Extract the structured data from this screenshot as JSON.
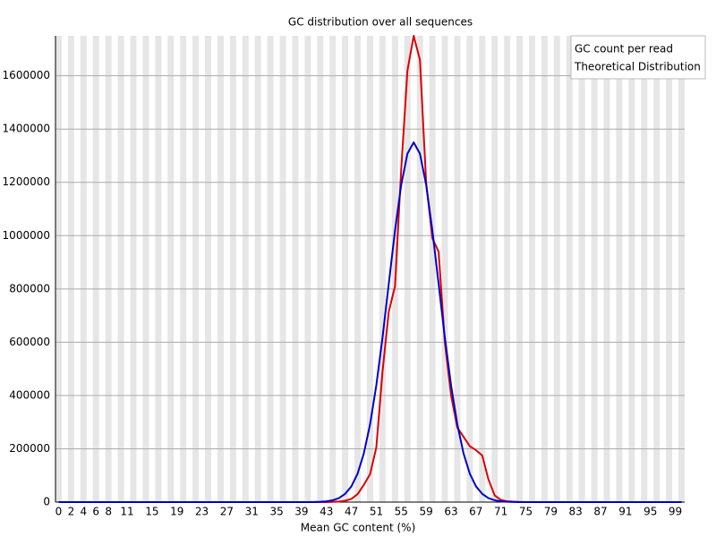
{
  "chart_data": {
    "type": "line",
    "title": "GC distribution over all sequences",
    "xlabel": "Mean GC content (%)",
    "categories": [
      "0",
      null,
      "2",
      null,
      "4",
      null,
      "6",
      null,
      "8",
      null,
      null,
      "11",
      null,
      null,
      null,
      "15",
      null,
      null,
      null,
      "19",
      null,
      null,
      null,
      "23",
      null,
      null,
      null,
      "27",
      null,
      null,
      null,
      "31",
      null,
      null,
      null,
      "35",
      null,
      null,
      null,
      "39",
      null,
      null,
      null,
      "43",
      null,
      null,
      null,
      "47",
      null,
      null,
      null,
      "51",
      null,
      null,
      null,
      "55",
      null,
      null,
      null,
      "59",
      null,
      null,
      null,
      "63",
      null,
      null,
      null,
      "67",
      null,
      null,
      null,
      "71",
      null,
      null,
      null,
      "75",
      null,
      null,
      null,
      "79",
      null,
      null,
      null,
      "83",
      null,
      null,
      null,
      "87",
      null,
      null,
      null,
      "91",
      null,
      null,
      null,
      "95",
      null,
      null,
      null,
      "99",
      null
    ],
    "series": [
      {
        "name": "GC count per read",
        "color": "#dd0000",
        "values": [
          0,
          0,
          0,
          0,
          0,
          0,
          0,
          0,
          0,
          0,
          0,
          0,
          0,
          0,
          0,
          0,
          0,
          0,
          0,
          0,
          0,
          0,
          0,
          0,
          0,
          0,
          0,
          0,
          0,
          0,
          0,
          0,
          0,
          0,
          0,
          0,
          0,
          0,
          0,
          0,
          0,
          0,
          0,
          0,
          1000,
          2000,
          5000,
          12000,
          30000,
          65000,
          105000,
          205000,
          490000,
          715000,
          810000,
          1250000,
          1620000,
          1750000,
          1660000,
          1200000,
          990000,
          940000,
          600000,
          400000,
          280000,
          245000,
          210000,
          195000,
          175000,
          85000,
          25000,
          8000,
          3000,
          1500,
          500,
          0,
          0,
          0,
          0,
          0,
          0,
          0,
          0,
          0,
          0,
          0,
          0,
          0,
          0,
          0,
          0,
          0,
          0,
          0,
          0,
          0,
          0,
          0,
          0,
          0,
          0
        ]
      },
      {
        "name": "Theoretical Distribution",
        "color": "#0000cc",
        "values": [
          0,
          0,
          0,
          0,
          0,
          0,
          0,
          0,
          0,
          0,
          0,
          0,
          0,
          0,
          0,
          0,
          0,
          0,
          0,
          0,
          0,
          0,
          0,
          0,
          0,
          0,
          0,
          0,
          0,
          0,
          0,
          0,
          0,
          0,
          0,
          0,
          0,
          0,
          0,
          0,
          0,
          450,
          1200,
          3000,
          6900,
          15000,
          31000,
          59000,
          107000,
          183000,
          292000,
          438000,
          618000,
          819000,
          1019000,
          1191000,
          1308000,
          1350000,
          1308000,
          1191000,
          1019000,
          819000,
          618000,
          438000,
          292000,
          183000,
          107000,
          59000,
          31000,
          15000,
          6900,
          3000,
          1200,
          450,
          0,
          0,
          0,
          0,
          0,
          0,
          0,
          0,
          0,
          0,
          0,
          0,
          0,
          0,
          0,
          0,
          0,
          0,
          0,
          0,
          0,
          0,
          0,
          0,
          0,
          0,
          0
        ]
      }
    ],
    "ylim": [
      0,
      1750000
    ],
    "yticks": [
      0,
      200000,
      400000,
      600000,
      800000,
      1000000,
      1200000,
      1400000,
      1600000
    ],
    "grid": true,
    "legend": "top-right"
  }
}
